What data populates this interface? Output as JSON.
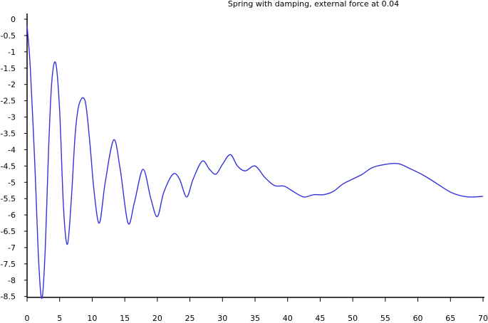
{
  "chart_data": {
    "type": "line",
    "title": "Spring with damping, external force at 0.04",
    "xlabel": "",
    "ylabel": "",
    "xlim": [
      0,
      70
    ],
    "ylim": [
      -8.6,
      0
    ],
    "x_ticks": [
      0,
      5,
      10,
      15,
      20,
      25,
      30,
      35,
      40,
      45,
      50,
      55,
      60,
      65,
      70
    ],
    "x_tick_labels": [
      "0",
      "5",
      "10",
      "15",
      "20",
      "25",
      "30",
      "35",
      "40",
      "45",
      "50",
      "55",
      "60",
      "65",
      "70"
    ],
    "y_ticks": [
      0,
      -0.5,
      -1,
      -1.5,
      -2,
      -2.5,
      -3,
      -3.5,
      -4,
      -4.5,
      -5,
      -5.5,
      -6,
      -6.5,
      -7,
      -7.5,
      -8,
      -8.5
    ],
    "y_tick_labels": [
      "0",
      "-0.5",
      "-1",
      "-1.5",
      "-2",
      "-2.5",
      "-3",
      "-3.5",
      "-4",
      "-4.5",
      "-5",
      "-5.5",
      "-6",
      "-6.5",
      "-7",
      "-7.5",
      "-8",
      "-8.5"
    ],
    "grid": false,
    "legend": "none",
    "series": [
      {
        "color": "#3333dd",
        "x": [
          0,
          0.5,
          1.2,
          1.8,
          2.3,
          2.8,
          3.3,
          3.8,
          4.4,
          5.0,
          5.6,
          6.2,
          6.8,
          7.4,
          8.0,
          8.9,
          9.6,
          10.3,
          11.1,
          12.0,
          13.3,
          14.3,
          15.5,
          16.5,
          17.8,
          19.0,
          20.0,
          21.0,
          22.4,
          23.4,
          24.5,
          25.5,
          26.9,
          28.0,
          29.0,
          30.0,
          31.2,
          32.3,
          33.5,
          35.0,
          36.5,
          38.0,
          39.5,
          41.0,
          42.5,
          44.0,
          45.5,
          47.0,
          48.5,
          50.0,
          51.5,
          53.0,
          55.0,
          57.0,
          59.0,
          61.0,
          63.0,
          65.0,
          67.0,
          68.5,
          70.0
        ],
        "y": [
          -0.2,
          -1.5,
          -4.5,
          -7.5,
          -8.55,
          -7.0,
          -4.0,
          -1.9,
          -1.35,
          -2.8,
          -5.8,
          -6.9,
          -5.5,
          -3.5,
          -2.6,
          -2.5,
          -3.7,
          -5.3,
          -6.25,
          -5.0,
          -3.7,
          -4.6,
          -6.25,
          -5.6,
          -4.6,
          -5.5,
          -6.05,
          -5.3,
          -4.75,
          -4.9,
          -5.45,
          -4.9,
          -4.35,
          -4.6,
          -4.75,
          -4.45,
          -4.15,
          -4.5,
          -4.65,
          -4.5,
          -4.85,
          -5.1,
          -5.12,
          -5.3,
          -5.45,
          -5.38,
          -5.38,
          -5.28,
          -5.05,
          -4.9,
          -4.75,
          -4.55,
          -4.45,
          -4.43,
          -4.6,
          -4.8,
          -5.05,
          -5.3,
          -5.43,
          -5.45,
          -5.43
        ]
      }
    ]
  }
}
